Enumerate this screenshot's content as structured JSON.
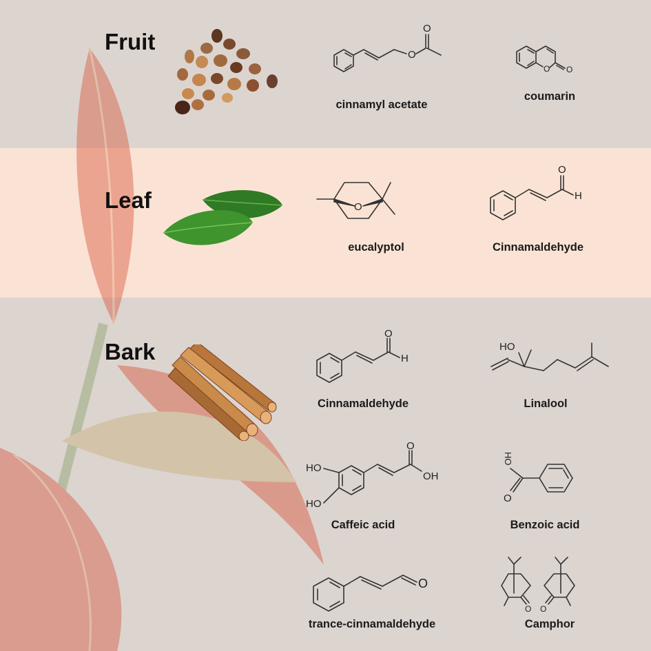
{
  "sections": {
    "fruit": {
      "title": "Fruit",
      "compounds": [
        "cinnamyl acetate",
        "coumarin"
      ]
    },
    "leaf": {
      "title": "Leaf",
      "compounds": [
        "eucalyptol",
        "Cinnamaldehyde"
      ]
    },
    "bark": {
      "title": "Bark",
      "compounds": [
        "Cinnamaldehyde",
        "Linalool",
        "Caffeic acid",
        "Benzoic acid",
        "trance-cinnamaldehyde",
        "Camphor"
      ]
    }
  },
  "atom_labels": {
    "O": "O",
    "H": "H",
    "HO": "HO",
    "OH": "OH"
  },
  "colors": {
    "band_fruit": "#dcd4cf",
    "band_leaf": "#fae3d4",
    "band_bark": "#dcd4cf",
    "leaf_green": "#3f8a2a",
    "bark_brown": "#c47a3a"
  }
}
